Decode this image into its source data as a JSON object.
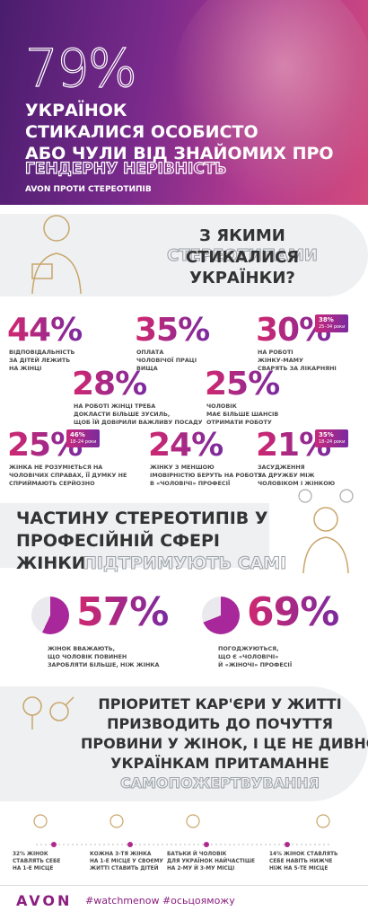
{
  "header": {
    "big": "79%",
    "lines": [
      "УКРАЇНОК",
      "СТИКАЛИСЯ ОСОБИСТО",
      "АБО ЧУЛИ ВІД ЗНАЙОМИХ ПРО"
    ],
    "highlight": "ГЕНДЕРНУ НЕРІВНІСТЬ",
    "tagline": "AVON ПРОТИ СТЕРЕОТИПІВ"
  },
  "section1": {
    "title_a": "З ЯКИМИ",
    "title_b": "СТЕРЕОТИПАМИ",
    "lines": [
      "СТИКАЛИСЯ",
      "УКРАЇНКИ?"
    ]
  },
  "stats": [
    {
      "value": "44%",
      "text": [
        "ВІДПОВІДАЛЬНІСТЬ",
        "ЗА ДІТЕЙ ЛЕЖИТЬ",
        "НА ЖІНЦІ"
      ]
    },
    {
      "value": "35%",
      "text": [
        "ОПЛАТА",
        "ЧОЛОВІЧОЇ ПРАЦІ",
        "ВИЩА"
      ]
    },
    {
      "value": "30%",
      "text": [
        "НА РОБОТІ",
        "ЖІНКУ-МАМУ",
        "СВАРЯТЬ ЗА ЛІКАРНЯНІ"
      ],
      "badge": {
        "value": "38%",
        "age": "25–34 роки"
      }
    },
    {
      "value": "28%",
      "text": [
        "НА РОБОТІ ЖІНЦІ ТРЕБА",
        "ДОКЛАСТИ БІЛЬШЕ ЗУСИЛЬ,",
        "ЩОБ ЇЙ ДОВІРИЛИ ВАЖЛИВУ ПОСАДУ"
      ]
    },
    {
      "value": "25%",
      "text": [
        "ЧОЛОВІК",
        "МАЄ БІЛЬШЕ ШАНСІВ",
        "ОТРИМАТИ РОБОТУ"
      ]
    },
    {
      "value": "25%",
      "text": [
        "ЖІНКА НЕ РОЗУМІЄТЬСЯ НА",
        "ЧОЛОВІЧИХ СПРАВАХ, ЇЇ ДУМКУ НЕ",
        "СПРИЙМАЮТЬ СЕРЙОЗНО"
      ],
      "badge": {
        "value": "46%",
        "age": "18–24 роки"
      }
    },
    {
      "value": "24%",
      "text": [
        "ЖІНКУ З МЕНШОЮ",
        "ІМОВІРНІСТЮ БЕРУТЬ НА РОБОТУ",
        "В «ЧОЛОВІЧІ» ПРОФЕСІЇ"
      ]
    },
    {
      "value": "21%",
      "text": [
        "ЗАСУДЖЕННЯ",
        "ЗА ДРУЖБУ МІЖ",
        "ЧОЛОВІКОМ І ЖІНКОЮ"
      ],
      "badge": {
        "value": "35%",
        "age": "18–24 роки"
      }
    }
  ],
  "section2": {
    "lines": [
      "ЧАСТИНУ СТЕРЕОТИПІВ У",
      "ПРОФЕСІЙНІЙ СФЕРІ"
    ],
    "last_a": "ЖІНКИ",
    "last_b": "ПІДТРИМУЮТЬ САМІ"
  },
  "pies": [
    {
      "value": "57%",
      "text": [
        "ЖІНОК ВВАЖАЮТЬ,",
        "ЩО ЧОЛОВІК ПОВИНЕН",
        "ЗАРОБЛЯТИ БІЛЬШЕ, НІЖ ЖІНКА"
      ]
    },
    {
      "value": "69%",
      "text": [
        "ПОГОДЖУЮТЬСЯ,",
        "ЩО Є «ЧОЛОВІЧІ»",
        "Й «ЖІНОЧІ» ПРОФЕСІЇ"
      ]
    }
  ],
  "section3": {
    "lines": [
      "ПРІОРИТЕТ КАР'ЄРИ У ЖИТТІ",
      "ПРИЗВОДИТЬ ДО ПОЧУТТЯ",
      "ПРОВИНИ У ЖІНОК, І ЦЕ НЕ ДИВНО —",
      "УКРАЇНКАМ ПРИТАМАННЕ"
    ],
    "highlight": "САМОПОЖЕРТВУВАННЯ"
  },
  "bottom": [
    [
      "32% ЖІНОК",
      "СТАВЛЯТЬ СЕБЕ",
      "НА 1-Е МІСЦЕ"
    ],
    [
      "КОЖНА 3-ТЯ ЖІНКА",
      "НА 1-Е МІСЦЕ У СВОЄМУ",
      "ЖИТТІ СТАВИТЬ ДІТЕЙ"
    ],
    [
      "БАТЬКИ Й ЧОЛОВІК",
      "ДЛЯ УКРАЇНОК НАЙЧАСТІШЕ",
      "НА 2-МУ Й 3-МУ МІСЦІ"
    ],
    [
      "14% ЖІНОК СТАВЛЯТЬ",
      "СЕБЕ НАВІТЬ НИЖЧЕ",
      "НІЖ НА 5-ТЕ МІСЦЕ"
    ]
  ],
  "footer": {
    "brand": "AVON",
    "tags": "#watchmenow #осьцояможу"
  }
}
